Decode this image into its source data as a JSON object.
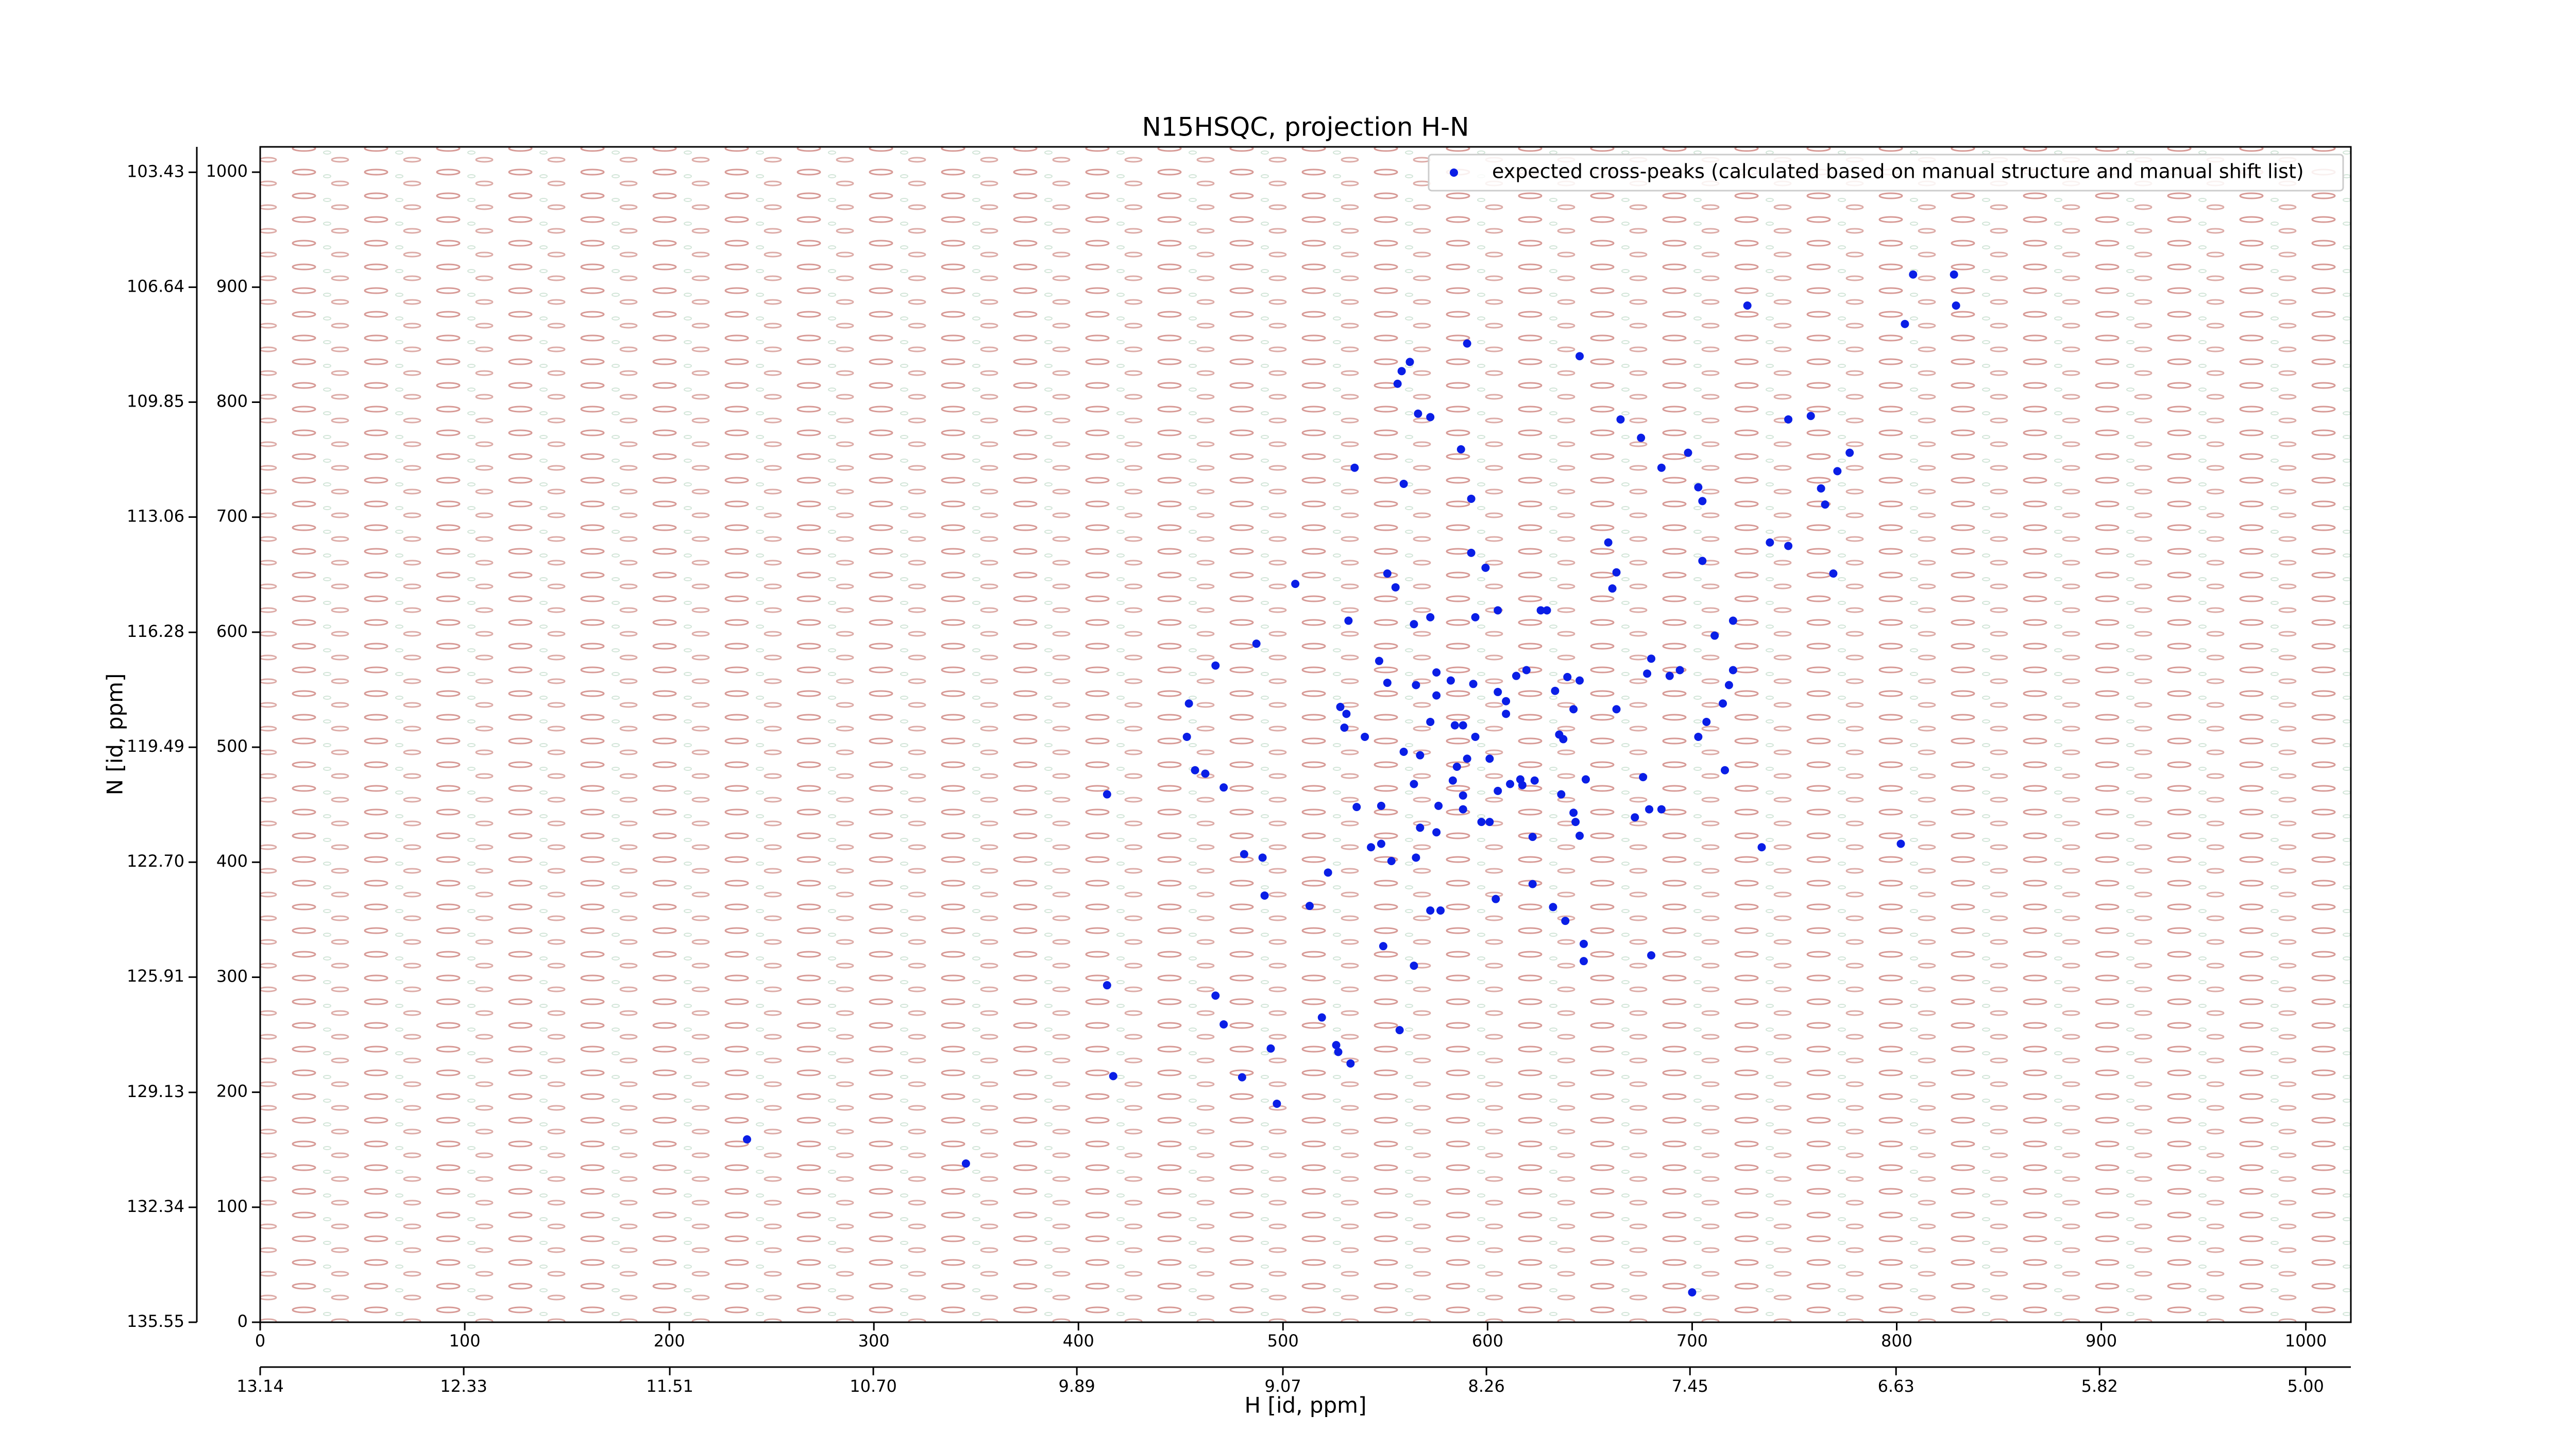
{
  "chart_data": {
    "type": "scatter",
    "title": "N15HSQC, projection H-N",
    "xlabel": "H [id, ppm]",
    "ylabel": "N [id, ppm]",
    "xlim": [
      0,
      1022
    ],
    "ylim": [
      0,
      1022
    ],
    "xticks": [
      0,
      100,
      200,
      300,
      400,
      500,
      600,
      700,
      800,
      900,
      1000
    ],
    "yticks": [
      0,
      100,
      200,
      300,
      400,
      500,
      600,
      700,
      800,
      900,
      1000
    ],
    "x2lim": [
      13.14,
      4.82
    ],
    "x2ticks": [
      13.14,
      12.33,
      11.51,
      {
        "value": 10.7,
        "label": "10.70"
      },
      9.89,
      9.07,
      8.26,
      7.45,
      6.63,
      5.82,
      {
        "value": 5,
        "label": "5.00"
      }
    ],
    "y2lim": [
      135.55,
      102.72
    ],
    "y2ticks": [
      135.55,
      132.34,
      129.13,
      125.91,
      {
        "value": 122.7,
        "label": "122.70"
      },
      119.49,
      116.28,
      113.06,
      109.85,
      106.64,
      103.43
    ],
    "legend": "upper right",
    "x": [
      808,
      828,
      804,
      829,
      727,
      590,
      645,
      562,
      558,
      556,
      665,
      747,
      758,
      566,
      572,
      675,
      587,
      698,
      685,
      535,
      777,
      771,
      703,
      763,
      705,
      559,
      592,
      765,
      659,
      738,
      747,
      592,
      705,
      663,
      599,
      769,
      551,
      506,
      555,
      661,
      594,
      572,
      605,
      626,
      629,
      532,
      564,
      720,
      711,
      487,
      680,
      678,
      467,
      547,
      575,
      614,
      619,
      551,
      565,
      575,
      582,
      593,
      605,
      609,
      609,
      639,
      645,
      633,
      689,
      694,
      720,
      718,
      454,
      528,
      531,
      584,
      572,
      642,
      663,
      715,
      707,
      703,
      453,
      540,
      530,
      559,
      567,
      588,
      594,
      635,
      637,
      590,
      601,
      716,
      457,
      462,
      471,
      414,
      585,
      583,
      564,
      616,
      623,
      605,
      611,
      617,
      636,
      676,
      648,
      588,
      588,
      548,
      536,
      576,
      601,
      597,
      642,
      643,
      679,
      685,
      672,
      567,
      575,
      548,
      543,
      565,
      553,
      481,
      490,
      622,
      645,
      734,
      802,
      522,
      622,
      491,
      513,
      604,
      632,
      572,
      577,
      638,
      647,
      549,
      680,
      647,
      564,
      414,
      467,
      471,
      519,
      557,
      526,
      494,
      527,
      533,
      417,
      480,
      497,
      238,
      345,
      700
    ],
    "series": [
      {
        "name": "expected cross-peaks (calculated based on manual structure and manual shift list)",
        "color": "#0a1ee6",
        "values": [
          911,
          911,
          868,
          884,
          884,
          851,
          840,
          835,
          827,
          816,
          785,
          785,
          788,
          790,
          787,
          769,
          759,
          756,
          743,
          743,
          756,
          740,
          726,
          725,
          714,
          729,
          716,
          711,
          678,
          678,
          675,
          669,
          662,
          652,
          656,
          651,
          651,
          642,
          639,
          638,
          613,
          613,
          619,
          619,
          619,
          610,
          607,
          610,
          597,
          590,
          577,
          564,
          571,
          575,
          565,
          562,
          567,
          556,
          554,
          545,
          558,
          555,
          548,
          540,
          529,
          561,
          558,
          549,
          562,
          567,
          567,
          554,
          538,
          535,
          529,
          519,
          522,
          533,
          533,
          538,
          522,
          509,
          509,
          509,
          517,
          496,
          493,
          519,
          509,
          511,
          507,
          490,
          490,
          480,
          480,
          477,
          465,
          459,
          483,
          471,
          468,
          472,
          471,
          462,
          468,
          467,
          459,
          474,
          472,
          458,
          446,
          449,
          448,
          449,
          435,
          435,
          443,
          435,
          446,
          446,
          439,
          430,
          426,
          416,
          413,
          404,
          401,
          407,
          404,
          422,
          423,
          413,
          416,
          391,
          381,
          371,
          362,
          368,
          361,
          358,
          358,
          349,
          329,
          327,
          319,
          314,
          310,
          293,
          284,
          259,
          265,
          254,
          241,
          238,
          235,
          225,
          214,
          213,
          190,
          159,
          138,
          26
        ]
      }
    ]
  }
}
